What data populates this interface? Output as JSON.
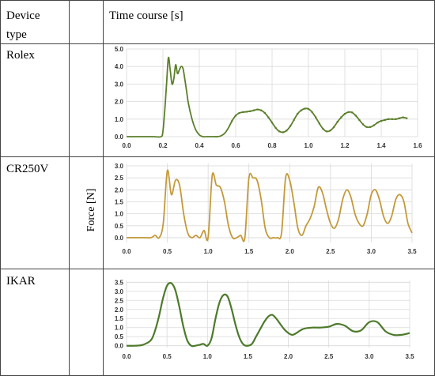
{
  "header": {
    "device_col": "Device",
    "device_col_line2": "type",
    "time_col": "Time course [s]"
  },
  "ylabel": "Force [N]",
  "colors": {
    "olive": "#5b7f2a",
    "gold": "#c49a3a",
    "green": "#4c7a2a",
    "grid": "#d9d9d9",
    "border": "#444444"
  },
  "chart_data": [
    {
      "type": "line",
      "device": "Rolex",
      "xticks": [
        "0.0",
        "0.2",
        "0.4",
        "0.6",
        "0.8",
        "1.0",
        "1.2",
        "1.4",
        "1.6"
      ],
      "yticks": [
        "0.0",
        "1.0",
        "2.0",
        "3.0",
        "4.0",
        "5.0"
      ],
      "xlim": [
        0,
        1.6
      ],
      "ylim": [
        0,
        5.0
      ],
      "grid": true,
      "x": [
        0,
        0.05,
        0.1,
        0.15,
        0.19,
        0.2,
        0.21,
        0.22,
        0.23,
        0.24,
        0.25,
        0.26,
        0.27,
        0.28,
        0.29,
        0.3,
        0.31,
        0.32,
        0.33,
        0.34,
        0.36,
        0.38,
        0.4,
        0.42,
        0.44,
        0.46,
        0.48,
        0.5,
        0.52,
        0.54,
        0.56,
        0.58,
        0.6,
        0.62,
        0.64,
        0.66,
        0.68,
        0.7,
        0.72,
        0.74,
        0.76,
        0.78,
        0.8,
        0.82,
        0.84,
        0.86,
        0.88,
        0.9,
        0.92,
        0.94,
        0.96,
        0.98,
        1.0,
        1.02,
        1.04,
        1.06,
        1.08,
        1.1,
        1.12,
        1.14,
        1.16,
        1.18,
        1.2,
        1.22,
        1.24,
        1.26,
        1.28,
        1.3,
        1.32,
        1.34,
        1.36,
        1.38,
        1.4,
        1.42,
        1.44,
        1.46,
        1.48,
        1.5,
        1.52,
        1.54
      ],
      "y": [
        0,
        0,
        0,
        0,
        0,
        0.3,
        1.5,
        3.0,
        4.5,
        3.8,
        3.0,
        3.3,
        4.1,
        3.6,
        3.8,
        4.0,
        3.9,
        3.3,
        2.6,
        1.9,
        1.0,
        0.4,
        0.1,
        0,
        0,
        0,
        0,
        0,
        0.05,
        0.2,
        0.5,
        0.9,
        1.2,
        1.35,
        1.4,
        1.42,
        1.45,
        1.5,
        1.55,
        1.5,
        1.35,
        1.1,
        0.8,
        0.5,
        0.3,
        0.25,
        0.35,
        0.6,
        0.95,
        1.3,
        1.5,
        1.6,
        1.58,
        1.4,
        1.1,
        0.75,
        0.45,
        0.3,
        0.35,
        0.55,
        0.85,
        1.1,
        1.3,
        1.4,
        1.38,
        1.2,
        0.95,
        0.7,
        0.55,
        0.55,
        0.65,
        0.8,
        0.9,
        0.95,
        1.0,
        1.0,
        1.0,
        1.05,
        1.1,
        1.05
      ]
    },
    {
      "type": "line",
      "device": "CR250V",
      "xticks": [
        "0.0",
        "0.5",
        "1.0",
        "1.5",
        "2.0",
        "2.5",
        "3.0",
        "3.5"
      ],
      "yticks": [
        "0.0",
        "0.5",
        "1.0",
        "1.5",
        "2.0",
        "2.5",
        "3.0"
      ],
      "xlim": [
        0,
        3.5
      ],
      "ylim": [
        -0.2,
        3.1
      ],
      "grid": true,
      "x": [
        0,
        0.2,
        0.3,
        0.35,
        0.4,
        0.45,
        0.5,
        0.55,
        0.6,
        0.65,
        0.7,
        0.75,
        0.8,
        0.85,
        0.9,
        0.95,
        1.0,
        1.05,
        1.1,
        1.15,
        1.2,
        1.25,
        1.3,
        1.35,
        1.4,
        1.45,
        1.5,
        1.55,
        1.6,
        1.65,
        1.7,
        1.75,
        1.8,
        1.85,
        1.9,
        1.95,
        2.0,
        2.05,
        2.1,
        2.15,
        2.2,
        2.25,
        2.3,
        2.35,
        2.4,
        2.45,
        2.5,
        2.55,
        2.6,
        2.65,
        2.7,
        2.75,
        2.8,
        2.85,
        2.9,
        2.95,
        3.0,
        3.05,
        3.1,
        3.15,
        3.2,
        3.25,
        3.3,
        3.35,
        3.4,
        3.45,
        3.5
      ],
      "y": [
        0,
        0,
        0,
        0.1,
        0,
        0.6,
        2.8,
        1.8,
        2.4,
        2.2,
        1.0,
        0.2,
        0,
        0.1,
        0,
        0.3,
        0,
        2.6,
        2.2,
        2.1,
        1.5,
        0.5,
        0,
        0,
        0.1,
        0,
        2.5,
        2.5,
        2.4,
        1.6,
        0.4,
        0,
        0,
        0,
        0.2,
        2.5,
        2.4,
        1.5,
        0.4,
        0.1,
        0.5,
        0.8,
        1.3,
        2.1,
        1.9,
        1.2,
        0.6,
        0.4,
        0.8,
        1.6,
        2.0,
        1.7,
        1.0,
        0.6,
        0.5,
        1.0,
        1.8,
        2.0,
        1.6,
        0.9,
        0.6,
        0.9,
        1.6,
        1.8,
        1.5,
        0.6,
        0.2
      ]
    },
    {
      "type": "line",
      "device": "IKAR",
      "xticks": [
        "0.0",
        "0.5",
        "1.0",
        "1.5",
        "2.0",
        "2.5",
        "3.0",
        "3.5"
      ],
      "yticks": [
        "0.0",
        "0.5",
        "1.0",
        "1.5",
        "2.0",
        "2.5",
        "3.0",
        "3.5"
      ],
      "xlim": [
        0,
        3.5
      ],
      "ylim": [
        -0.1,
        3.6
      ],
      "grid": true,
      "x": [
        0,
        0.1,
        0.2,
        0.3,
        0.35,
        0.4,
        0.45,
        0.5,
        0.55,
        0.6,
        0.65,
        0.7,
        0.75,
        0.8,
        0.85,
        0.9,
        0.95,
        1.0,
        1.05,
        1.1,
        1.15,
        1.2,
        1.25,
        1.3,
        1.35,
        1.4,
        1.45,
        1.5,
        1.55,
        1.6,
        1.65,
        1.7,
        1.75,
        1.8,
        1.85,
        1.9,
        1.95,
        2.0,
        2.05,
        2.1,
        2.15,
        2.2,
        2.3,
        2.4,
        2.5,
        2.6,
        2.7,
        2.8,
        2.9,
        3.0,
        3.1,
        3.2,
        3.3,
        3.4,
        3.5
      ],
      "y": [
        0,
        0,
        0.05,
        0.3,
        0.8,
        1.6,
        2.6,
        3.3,
        3.45,
        3.1,
        2.2,
        1.1,
        0.3,
        0,
        0,
        0.05,
        0.1,
        0,
        0.4,
        1.5,
        2.4,
        2.8,
        2.7,
        2.0,
        1.1,
        0.4,
        0.05,
        0,
        0.1,
        0.5,
        0.9,
        1.3,
        1.6,
        1.7,
        1.5,
        1.2,
        0.9,
        0.7,
        0.6,
        0.7,
        0.85,
        0.95,
        1.0,
        1.0,
        1.05,
        1.2,
        1.1,
        0.8,
        0.85,
        1.3,
        1.3,
        0.8,
        0.6,
        0.6,
        0.7
      ]
    }
  ]
}
